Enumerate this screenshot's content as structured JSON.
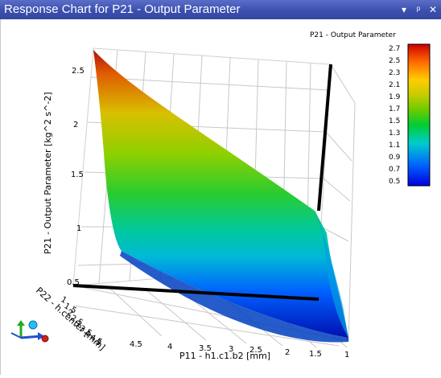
{
  "window": {
    "title": "Response Chart for P21 - Output Parameter",
    "dropdown_icon": "chevron-down-icon",
    "pin_icon": "pin-icon",
    "close_icon": "close-icon",
    "dropdown_glyph": "▾",
    "pin_glyph": "ᵖ",
    "close_glyph": "✕"
  },
  "chart_data": {
    "type": "surface3d",
    "z_axis": {
      "label": "P21 - Output Parameter  [kg^2 s^-2]",
      "ticks": [
        "2.5",
        "2",
        "1.5",
        "1",
        "0.5"
      ]
    },
    "x_axis": {
      "label": "P11 - h1.c1.b2  [mm]",
      "ticks": [
        "4.5",
        "4",
        "3.5",
        "3",
        "2.5",
        "2",
        "1.5",
        "1"
      ]
    },
    "y_axis": {
      "label": "P22 - h.center  [mm]",
      "ticks": [
        "1",
        "1.5",
        "2",
        "2.5",
        "3",
        "3.5",
        "4",
        "4.5",
        "5"
      ]
    },
    "legend": {
      "title": "P21 - Output Parameter",
      "ticks": [
        "2.7",
        "2.5",
        "2.3",
        "2.1",
        "1.9",
        "1.7",
        "1.5",
        "1.3",
        "1.1",
        "0.9",
        "0.7",
        "0.5"
      ],
      "range": [
        0.5,
        2.7
      ],
      "colors": [
        "#cc0000",
        "#ff6600",
        "#ffcc00",
        "#cccc00",
        "#66cc00",
        "#00cc33",
        "#00cccc",
        "#0066ff",
        "#0000dd"
      ]
    },
    "corner_values": {
      "p11_max_p22_min": 2.7,
      "p11_min_p22_min": 1.0,
      "p11_max_p22_max": 0.95,
      "p11_min_p22_max": 0.55
    }
  }
}
